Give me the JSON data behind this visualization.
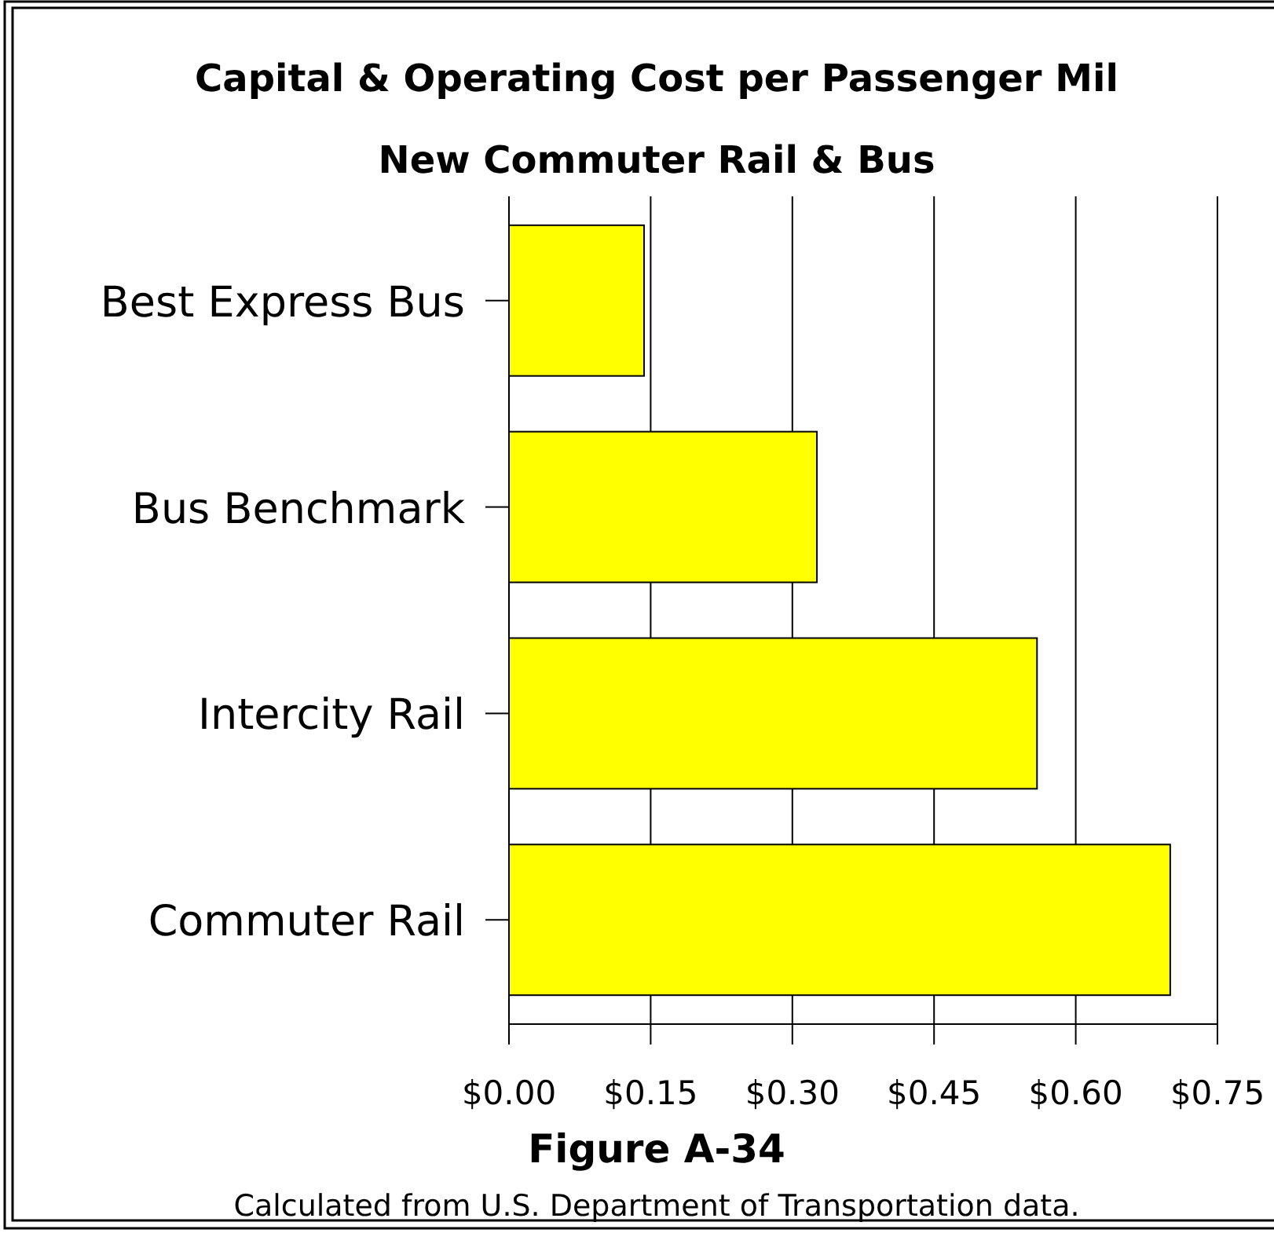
{
  "chart_data": {
    "type": "bar",
    "orientation": "horizontal",
    "title": "Capital & Operating Cost per Passenger Mil",
    "subtitle": "New Commuter Rail & Bus",
    "categories": [
      "Best Express Bus",
      "Bus Benchmark",
      "Intercity Rail",
      "Commuter Rail"
    ],
    "values": [
      0.143,
      0.326,
      0.559,
      0.7
    ],
    "color": "#ffff00",
    "xlim": [
      0,
      0.75
    ],
    "xticks": [
      {
        "value": 0,
        "label": "$0.00"
      },
      {
        "value": 0.15,
        "label": "$0.15"
      },
      {
        "value": 0.3,
        "label": "$0.30"
      },
      {
        "value": 0.45,
        "label": "$0.45"
      },
      {
        "value": 0.6,
        "label": "$0.60"
      },
      {
        "value": 0.75,
        "label": "$0.75"
      }
    ],
    "grid": "x",
    "annotations": [
      "Figure A-34",
      "Calculated from U.S. Department of Transportation data."
    ]
  }
}
